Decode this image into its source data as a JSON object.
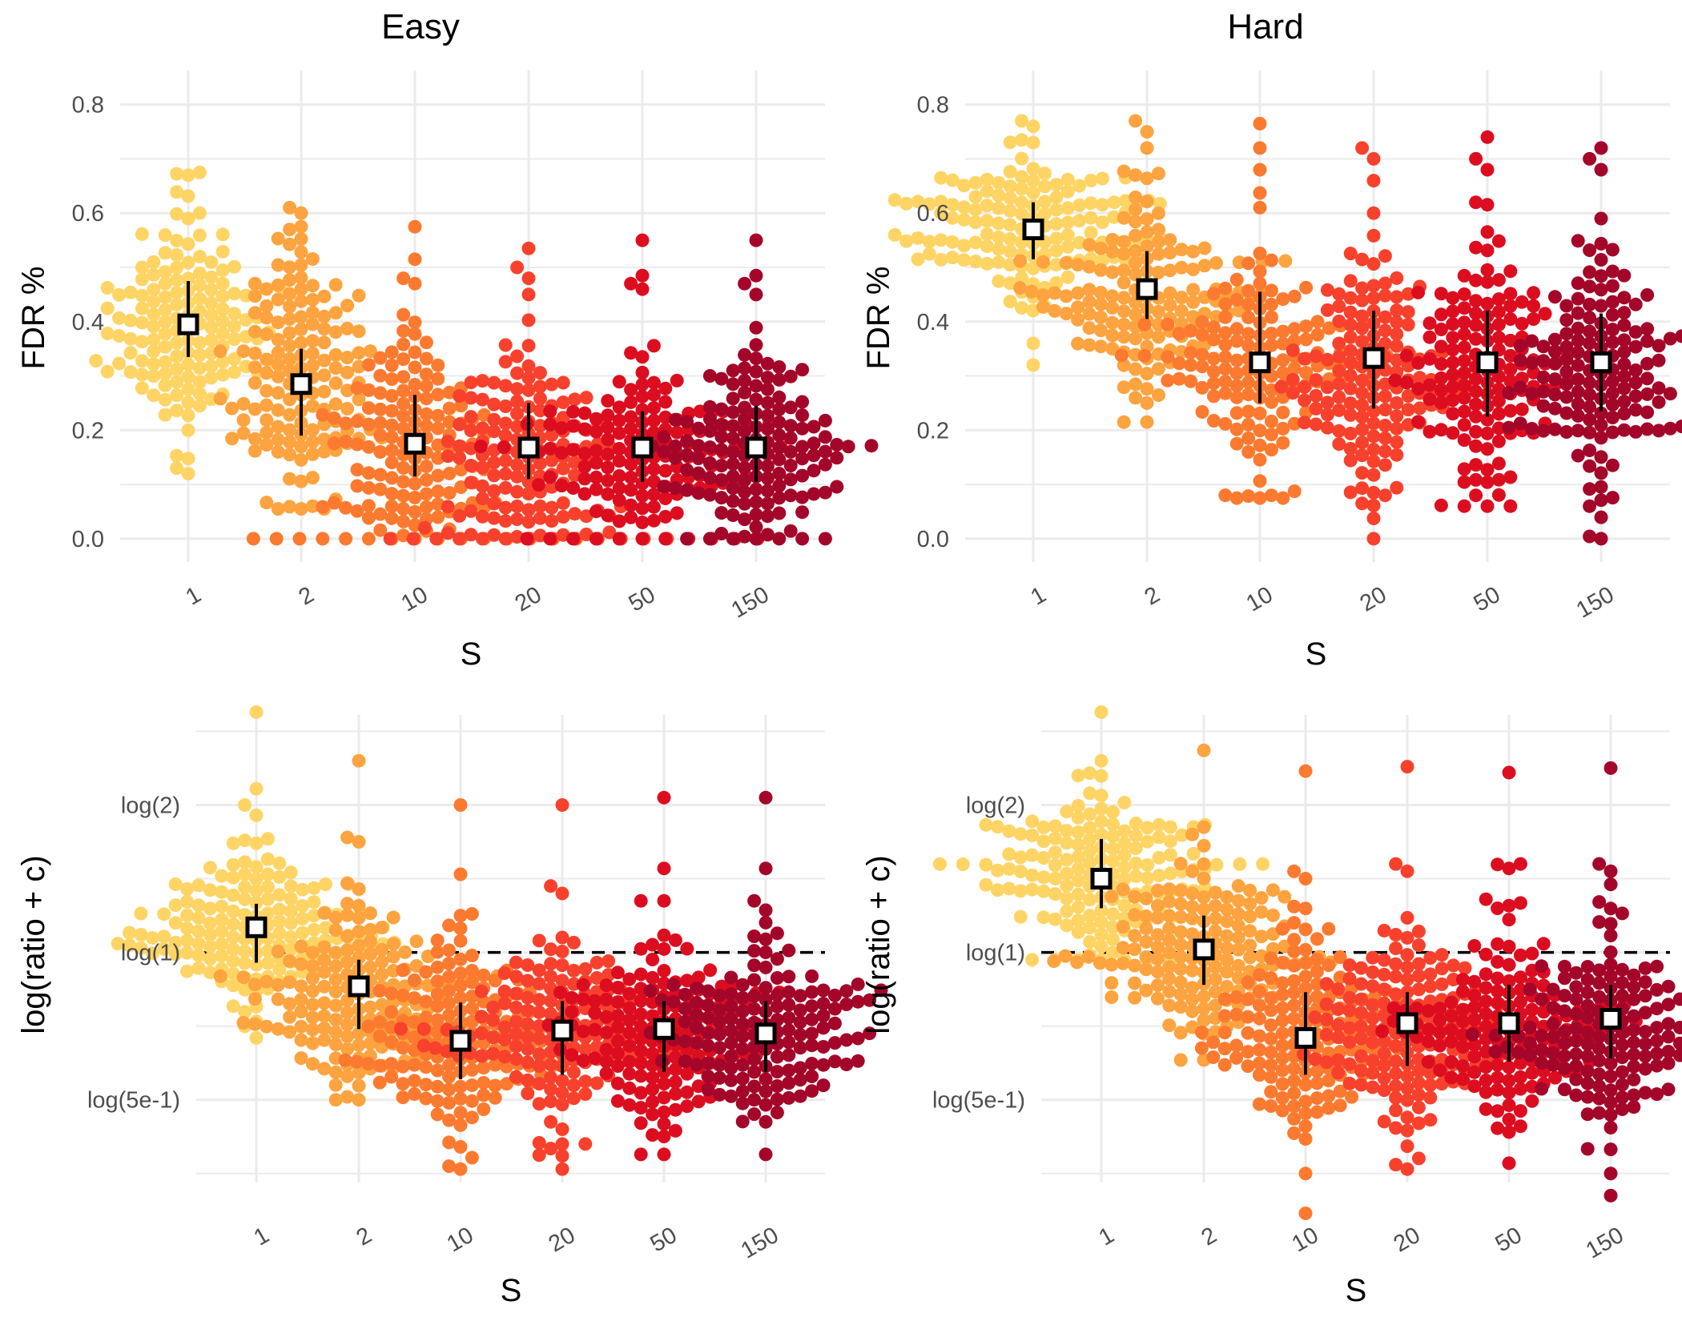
{
  "chart_data": [
    {
      "type": "scatter",
      "subtype": "beeswarm-with-summary",
      "title": "Easy",
      "xlabel": "S",
      "ylabel": "FDR %",
      "categories": [
        "1",
        "2",
        "10",
        "20",
        "50",
        "150"
      ],
      "colors": [
        "#FED465",
        "#FDA33F",
        "#FC7A2F",
        "#F8412C",
        "#DD0D20",
        "#A4062A"
      ],
      "ylim": [
        -0.04,
        0.86
      ],
      "yticks": [
        0.0,
        0.2,
        0.4,
        0.6,
        0.8
      ],
      "ytick_labels": [
        "0.0",
        "0.2",
        "0.4",
        "0.6",
        "0.8"
      ],
      "summary": [
        {
          "category": "1",
          "mean": 0.395,
          "low": 0.335,
          "high": 0.475
        },
        {
          "category": "2",
          "mean": 0.285,
          "low": 0.19,
          "high": 0.35
        },
        {
          "category": "10",
          "mean": 0.175,
          "low": 0.115,
          "high": 0.265
        },
        {
          "category": "20",
          "mean": 0.168,
          "low": 0.11,
          "high": 0.25
        },
        {
          "category": "50",
          "mean": 0.168,
          "low": 0.105,
          "high": 0.235
        },
        {
          "category": "150",
          "mean": 0.168,
          "low": 0.105,
          "high": 0.245
        }
      ],
      "points": [
        {
          "category": "1",
          "min": 0.12,
          "max": 0.675,
          "center": 0.4,
          "spread": 0.1,
          "n": 140,
          "seed": 11,
          "extra": [
            0.67,
            0.675,
            0.13,
            0.12,
            0.6,
            0.59
          ]
        },
        {
          "category": "2",
          "min": 0.055,
          "max": 0.61,
          "center": 0.3,
          "spread": 0.11,
          "n": 140,
          "seed": 23,
          "extra": [
            0.61,
            0.6,
            0.57,
            0.06,
            0.055
          ]
        },
        {
          "category": "10",
          "min": 0.0,
          "max": 0.575,
          "center": 0.17,
          "spread": 0.1,
          "n": 140,
          "seed": 37,
          "zeros": 7,
          "extra": [
            0.575,
            0.515,
            0.48,
            0.47
          ]
        },
        {
          "category": "20",
          "min": 0.0,
          "max": 0.535,
          "center": 0.16,
          "spread": 0.1,
          "n": 140,
          "seed": 41,
          "zeros": 7,
          "extra": [
            0.535,
            0.5,
            0.48,
            0.45
          ]
        },
        {
          "category": "50",
          "min": 0.0,
          "max": 0.55,
          "center": 0.16,
          "spread": 0.09,
          "n": 140,
          "seed": 53,
          "zeros": 5,
          "extra": [
            0.55,
            0.485,
            0.47,
            0.46
          ]
        },
        {
          "category": "150",
          "min": 0.0,
          "max": 0.55,
          "center": 0.16,
          "spread": 0.09,
          "n": 140,
          "seed": 67,
          "zeros": 5,
          "extra": [
            0.55,
            0.485,
            0.47,
            0.45
          ]
        }
      ]
    },
    {
      "type": "scatter",
      "subtype": "beeswarm-with-summary",
      "title": "Hard",
      "xlabel": "S",
      "ylabel": "FDR %",
      "categories": [
        "1",
        "2",
        "10",
        "20",
        "50",
        "150"
      ],
      "colors": [
        "#FED465",
        "#FDA33F",
        "#FC7A2F",
        "#F8412C",
        "#DD0D20",
        "#A4062A"
      ],
      "ylim": [
        -0.04,
        0.86
      ],
      "yticks": [
        0.0,
        0.2,
        0.4,
        0.6,
        0.8
      ],
      "ytick_labels": [
        "0.0",
        "0.2",
        "0.4",
        "0.6",
        "0.8"
      ],
      "summary": [
        {
          "category": "1",
          "mean": 0.57,
          "low": 0.515,
          "high": 0.62
        },
        {
          "category": "2",
          "mean": 0.46,
          "low": 0.405,
          "high": 0.53
        },
        {
          "category": "10",
          "mean": 0.325,
          "low": 0.25,
          "high": 0.455
        },
        {
          "category": "20",
          "mean": 0.333,
          "low": 0.24,
          "high": 0.42
        },
        {
          "category": "50",
          "mean": 0.325,
          "low": 0.225,
          "high": 0.42
        },
        {
          "category": "150",
          "mean": 0.325,
          "low": 0.235,
          "high": 0.415
        }
      ],
      "points": [
        {
          "category": "1",
          "min": 0.32,
          "max": 0.77,
          "center": 0.57,
          "spread": 0.07,
          "n": 140,
          "seed": 71,
          "extra": [
            0.77,
            0.76,
            0.73,
            0.36,
            0.32
          ]
        },
        {
          "category": "2",
          "min": 0.215,
          "max": 0.77,
          "center": 0.45,
          "spread": 0.09,
          "n": 140,
          "seed": 83,
          "extra": [
            0.77,
            0.75,
            0.72,
            0.25,
            0.215
          ]
        },
        {
          "category": "10",
          "min": 0.075,
          "max": 0.765,
          "center": 0.3,
          "spread": 0.11,
          "n": 140,
          "seed": 97,
          "extra": [
            0.765,
            0.72,
            0.68,
            0.61,
            0.08,
            0.075
          ]
        },
        {
          "category": "20",
          "min": 0.0,
          "max": 0.72,
          "center": 0.3,
          "spread": 0.11,
          "n": 140,
          "seed": 101,
          "extra": [
            0.72,
            0.7,
            0.66,
            0.6,
            0.08,
            0.065,
            0.0
          ]
        },
        {
          "category": "50",
          "min": 0.06,
          "max": 0.74,
          "center": 0.3,
          "spread": 0.11,
          "n": 140,
          "seed": 113,
          "extra": [
            0.74,
            0.7,
            0.68,
            0.62,
            0.08,
            0.06
          ]
        },
        {
          "category": "150",
          "min": 0.0,
          "max": 0.72,
          "center": 0.3,
          "spread": 0.11,
          "n": 140,
          "seed": 127,
          "extra": [
            0.72,
            0.7,
            0.68,
            0.59,
            0.06,
            0.0
          ]
        }
      ]
    },
    {
      "type": "scatter",
      "subtype": "beeswarm-with-summary",
      "title": "",
      "xlabel": "S",
      "ylabel": "log(ratio + c)",
      "categories": [
        "1",
        "2",
        "10",
        "20",
        "50",
        "150"
      ],
      "colors": [
        "#FED465",
        "#FDA33F",
        "#FC7A2F",
        "#F8412C",
        "#DD0D20",
        "#A4062A"
      ],
      "ylim": [
        -1.55,
        1.6
      ],
      "yticks": [
        -1.0,
        0.0,
        1.0
      ],
      "ytick_labels": [
        "log(5e-1)",
        "log(1)",
        "log(2)"
      ],
      "minor_yticks": [
        -1.5,
        -0.5,
        0.5,
        1.5
      ],
      "reference_line": 0.0,
      "summary": [
        {
          "category": "1",
          "mean": 0.17,
          "low": -0.07,
          "high": 0.33
        },
        {
          "category": "2",
          "mean": -0.23,
          "low": -0.52,
          "high": -0.05
        },
        {
          "category": "10",
          "mean": -0.6,
          "low": -0.86,
          "high": -0.34
        },
        {
          "category": "20",
          "mean": -0.53,
          "low": -0.83,
          "high": -0.33
        },
        {
          "category": "50",
          "mean": -0.52,
          "low": -0.81,
          "high": -0.33
        },
        {
          "category": "150",
          "mean": -0.55,
          "low": -0.81,
          "high": -0.33
        }
      ],
      "points": [
        {
          "category": "1",
          "min": -0.58,
          "max": 1.63,
          "center": 0.15,
          "spread": 0.25,
          "n": 150,
          "seed": 131,
          "extra": [
            1.63,
            1.11,
            1.0,
            0.93,
            0.77,
            -0.58
          ]
        },
        {
          "category": "2",
          "min": -1.0,
          "max": 1.3,
          "center": -0.3,
          "spread": 0.3,
          "n": 150,
          "seed": 137,
          "extra": [
            1.3,
            0.78,
            0.75,
            0.47,
            -0.98,
            -1.0
          ]
        },
        {
          "category": "10",
          "min": -1.47,
          "max": 1.0,
          "center": -0.6,
          "spread": 0.3,
          "n": 150,
          "seed": 149,
          "extra": [
            1.0,
            0.53,
            0.25,
            -1.45,
            -1.47
          ]
        },
        {
          "category": "20",
          "min": -1.47,
          "max": 1.0,
          "center": -0.55,
          "spread": 0.3,
          "n": 150,
          "seed": 151,
          "extra": [
            1.0,
            0.45,
            0.4,
            -1.38,
            -1.47
          ]
        },
        {
          "category": "50",
          "min": -1.37,
          "max": 1.05,
          "center": -0.55,
          "spread": 0.3,
          "n": 150,
          "seed": 163,
          "extra": [
            1.05,
            0.57,
            0.35,
            -1.37
          ]
        },
        {
          "category": "150",
          "min": -1.37,
          "max": 1.05,
          "center": -0.55,
          "spread": 0.3,
          "n": 150,
          "seed": 167,
          "extra": [
            1.05,
            0.57,
            0.35,
            -1.37
          ]
        }
      ]
    },
    {
      "type": "scatter",
      "subtype": "beeswarm-with-summary",
      "title": "",
      "xlabel": "S",
      "ylabel": "log(ratio + c)",
      "categories": [
        "1",
        "2",
        "10",
        "20",
        "50",
        "150"
      ],
      "colors": [
        "#FED465",
        "#FDA33F",
        "#FC7A2F",
        "#F8412C",
        "#DD0D20",
        "#A4062A"
      ],
      "ylim": [
        -1.55,
        1.6
      ],
      "yticks": [
        -1.0,
        0.0,
        1.0
      ],
      "ytick_labels": [
        "log(5e-1)",
        "log(1)",
        "log(2)"
      ],
      "minor_yticks": [
        -1.5,
        -0.5,
        0.5,
        1.5
      ],
      "reference_line": 0.0,
      "summary": [
        {
          "category": "1",
          "mean": 0.5,
          "low": 0.3,
          "high": 0.77
        },
        {
          "category": "2",
          "mean": 0.02,
          "low": -0.22,
          "high": 0.25
        },
        {
          "category": "10",
          "mean": -0.58,
          "low": -0.83,
          "high": -0.27
        },
        {
          "category": "20",
          "mean": -0.48,
          "low": -0.77,
          "high": -0.27
        },
        {
          "category": "50",
          "mean": -0.48,
          "low": -0.74,
          "high": -0.22
        },
        {
          "category": "150",
          "mean": -0.45,
          "low": -0.72,
          "high": -0.22
        }
      ],
      "points": [
        {
          "category": "1",
          "min": -0.05,
          "max": 1.63,
          "center": 0.55,
          "spread": 0.28,
          "n": 150,
          "seed": 173,
          "extra": [
            1.63,
            1.3,
            1.2,
            -0.05
          ]
        },
        {
          "category": "2",
          "min": -0.73,
          "max": 1.37,
          "center": 0.0,
          "spread": 0.3,
          "n": 150,
          "seed": 179,
          "extra": [
            1.37,
            0.85,
            0.8,
            -0.73
          ]
        },
        {
          "category": "10",
          "min": -1.77,
          "max": 1.23,
          "center": -0.6,
          "spread": 0.32,
          "n": 150,
          "seed": 181,
          "extra": [
            1.23,
            0.55,
            0.5,
            -1.5,
            -1.77
          ]
        },
        {
          "category": "20",
          "min": -1.47,
          "max": 1.26,
          "center": -0.5,
          "spread": 0.32,
          "n": 150,
          "seed": 191,
          "extra": [
            1.26,
            0.6,
            0.55,
            -1.44,
            -1.47
          ]
        },
        {
          "category": "50",
          "min": -1.43,
          "max": 1.22,
          "center": -0.5,
          "spread": 0.32,
          "n": 150,
          "seed": 193,
          "extra": [
            1.22,
            0.6,
            0.57,
            -1.43
          ]
        },
        {
          "category": "150",
          "min": -1.65,
          "max": 1.25,
          "center": -0.5,
          "spread": 0.32,
          "n": 150,
          "seed": 197,
          "extra": [
            1.25,
            0.6,
            0.55,
            -1.5,
            -1.65
          ]
        }
      ]
    }
  ]
}
